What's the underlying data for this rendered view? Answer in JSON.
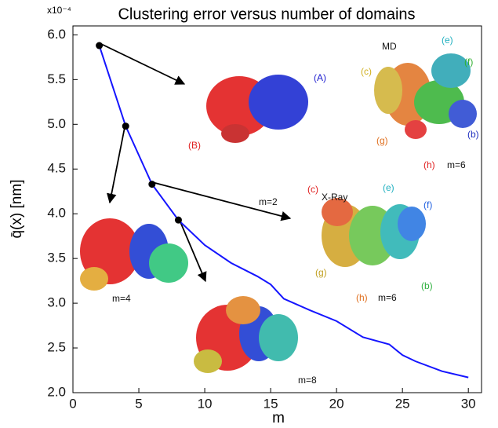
{
  "chart_data": {
    "type": "line",
    "title": "Clustering error versus number of domains",
    "x_label": "m",
    "y_label": "q̄(x) [nm]",
    "y_multiplier": "x10⁻⁴",
    "series": [
      {
        "color": "#1515ff",
        "x": [
          2,
          4,
          6,
          8,
          10,
          12,
          14,
          15,
          16,
          18,
          20,
          22,
          24,
          25,
          26,
          28,
          30
        ],
        "values": [
          5.88,
          4.98,
          4.33,
          3.93,
          3.65,
          3.45,
          3.3,
          3.21,
          3.05,
          2.92,
          2.8,
          2.62,
          2.54,
          2.42,
          2.35,
          2.24,
          2.17
        ]
      }
    ],
    "points": {
      "color": "#000000",
      "x": [
        2,
        4,
        6,
        8
      ],
      "values": [
        5.88,
        4.98,
        4.33,
        3.93
      ]
    },
    "xlim": [
      0,
      31
    ],
    "ylim": [
      2.0,
      6.1
    ],
    "xticks": [
      0,
      5,
      10,
      15,
      20,
      25,
      30
    ],
    "yticks": [
      {
        "value": 2,
        "label": "2.0"
      },
      2.5,
      {
        "value": 3,
        "label": "3.0"
      },
      3.5,
      {
        "value": 4,
        "label": "4.0"
      },
      4.5,
      {
        "value": 5,
        "label": "5.0"
      },
      5.5,
      {
        "value": 6,
        "label": "6.0"
      }
    ],
    "annotations": [
      "(A)",
      "(B)",
      "m=2",
      "MD",
      "(e)",
      "(c)",
      "(f)",
      "(g)",
      "(b)",
      "(h)",
      "m=6",
      "X-Ray",
      "(c)",
      "(e)",
      "(f)",
      "(g)",
      "(b)",
      "(h)",
      "m=6",
      "m=4",
      "m=8"
    ]
  }
}
